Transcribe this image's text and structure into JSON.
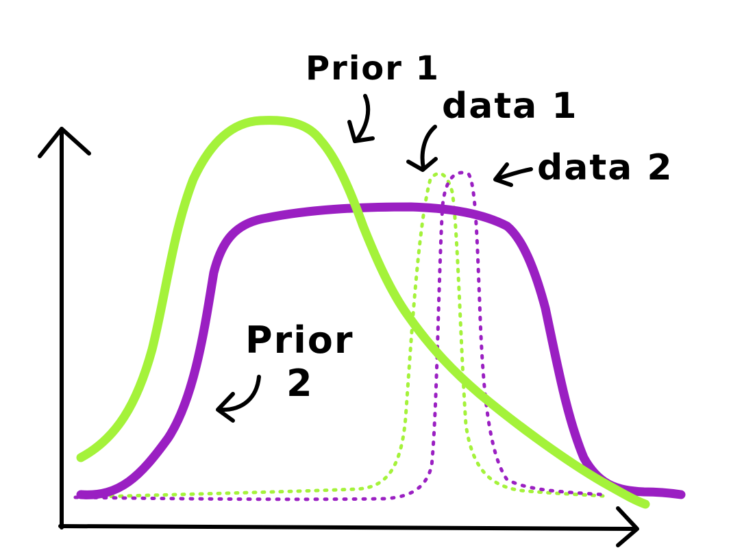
{
  "labels": {
    "prior1": "Prior 1",
    "prior2_line1": "Prior",
    "prior2_line2": "2",
    "data1": "data 1",
    "data2": "data 2"
  },
  "colors": {
    "prior1": "#a4f23a",
    "prior2": "#9a1fc2",
    "axis": "#000000",
    "background": "#ffffff"
  },
  "chart_data": {
    "type": "line",
    "xlabel": "",
    "ylabel": "",
    "series": [
      {
        "name": "Prior 1",
        "style": "solid",
        "color": "#a4f23a"
      },
      {
        "name": "Prior 2",
        "style": "solid",
        "color": "#9a1fc2"
      },
      {
        "name": "data 1",
        "style": "dotted",
        "color": "#a4f23a"
      },
      {
        "name": "data 2",
        "style": "dotted",
        "color": "#9a1fc2"
      }
    ]
  }
}
